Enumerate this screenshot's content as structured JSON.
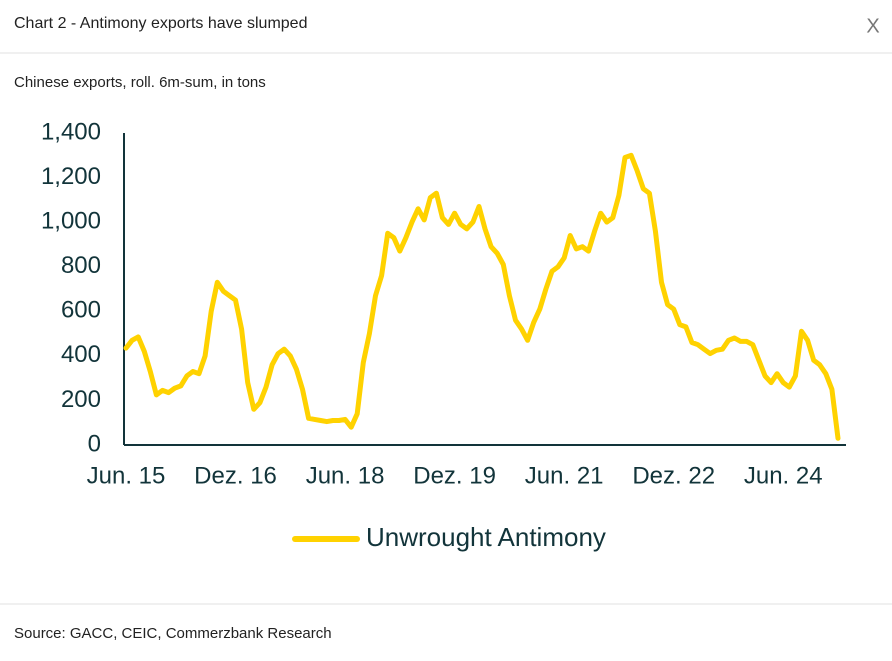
{
  "header": {
    "title": "Chart 2 - Antimony exports have slumped",
    "close": "X"
  },
  "chart_data": {
    "type": "line",
    "subtitle": "Chinese exports, roll. 6m-sum, in tons",
    "categories": [
      "Jun. 15",
      null,
      null,
      null,
      null,
      null,
      null,
      null,
      null,
      null,
      null,
      null,
      null,
      null,
      null,
      null,
      null,
      null,
      "Dez. 16",
      null,
      null,
      null,
      null,
      null,
      null,
      null,
      null,
      null,
      null,
      null,
      null,
      null,
      null,
      null,
      null,
      null,
      "Jun. 18",
      null,
      null,
      null,
      null,
      null,
      null,
      null,
      null,
      null,
      null,
      null,
      null,
      null,
      null,
      null,
      null,
      null,
      "Dez. 19",
      null,
      null,
      null,
      null,
      null,
      null,
      null,
      null,
      null,
      null,
      null,
      null,
      null,
      null,
      null,
      null,
      null,
      "Jun. 21",
      null,
      null,
      null,
      null,
      null,
      null,
      null,
      null,
      null,
      null,
      null,
      null,
      null,
      null,
      null,
      null,
      null,
      "Dez. 22",
      null,
      null,
      null,
      null,
      null,
      null,
      null,
      null,
      null,
      null,
      null,
      null,
      null,
      null,
      null,
      null,
      null,
      "Jun. 24",
      null,
      null,
      null,
      null,
      null,
      null,
      null,
      null,
      null
    ],
    "series": [
      {
        "name": "Unwrought Antimony",
        "color": "#ffd200",
        "values": [
          435,
          470,
          485,
          420,
          330,
          225,
          245,
          235,
          255,
          265,
          310,
          330,
          320,
          400,
          600,
          730,
          690,
          670,
          650,
          520,
          280,
          160,
          190,
          260,
          360,
          410,
          430,
          400,
          340,
          250,
          120,
          115,
          110,
          105,
          110,
          110,
          115,
          80,
          140,
          370,
          500,
          670,
          760,
          950,
          930,
          870,
          930,
          1000,
          1060,
          1010,
          1110,
          1130,
          1020,
          990,
          1040,
          990,
          970,
          1000,
          1070,
          970,
          890,
          860,
          810,
          670,
          560,
          520,
          470,
          550,
          610,
          700,
          780,
          800,
          840,
          940,
          880,
          890,
          870,
          960,
          1040,
          1000,
          1020,
          1120,
          1290,
          1300,
          1230,
          1150,
          1130,
          960,
          730,
          630,
          610,
          540,
          530,
          460,
          450,
          430,
          410,
          425,
          430,
          470,
          480,
          465,
          465,
          450,
          380,
          310,
          280,
          320,
          280,
          260,
          310,
          510,
          470,
          380,
          360,
          320,
          250,
          30
        ]
      }
    ],
    "ylim": [
      0,
      1400
    ],
    "yticks": [
      0,
      200,
      400,
      600,
      800,
      {
        "value": 1000,
        "label": "1,000"
      },
      {
        "value": 1200,
        "label": "1,200"
      },
      {
        "value": 1400,
        "label": "1,400"
      }
    ],
    "grid": false,
    "legend": "bottom"
  },
  "footer": {
    "source": "Source: GACC, CEIC, Commerzbank Research"
  }
}
